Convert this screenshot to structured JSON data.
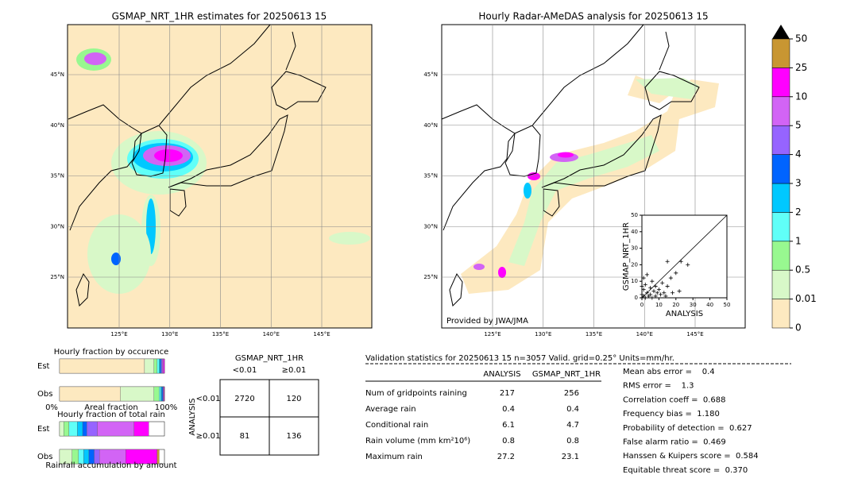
{
  "maps": [
    {
      "title": "GSMAP_NRT_1HR estimates for 20250613 15"
    },
    {
      "title": "Hourly Radar-AMeDAS analysis for 20250613 15",
      "credit": "Provided by JWA/JMA"
    }
  ],
  "lat_labels": [
    "45°N",
    "40°N",
    "35°N",
    "30°N",
    "25°N"
  ],
  "lon_labels": [
    "125°E",
    "130°E",
    "135°E",
    "140°E",
    "145°E"
  ],
  "colorbar": {
    "ticks": [
      0,
      0.01,
      0.5,
      1,
      2,
      3,
      4,
      5,
      10,
      25,
      50
    ],
    "colors": [
      "#fde9c0",
      "#d8f8c8",
      "#98f890",
      "#60fff8",
      "#00c8ff",
      "#0064ff",
      "#9664ff",
      "#d264f5",
      "#ff00ff",
      "#c89632"
    ],
    "extend_color": "#000000"
  },
  "chart_data": [
    {
      "type": "scatter",
      "xlabel": "ANALYSIS",
      "ylabel": "GSMAP_NRT_1HR",
      "xlim": [
        0,
        50
      ],
      "ylim": [
        0,
        50
      ],
      "xticks": [
        0,
        10,
        20,
        30,
        40,
        50
      ],
      "yticks": [
        0,
        10,
        20,
        30,
        40,
        50
      ],
      "x": [
        0,
        1,
        1,
        2,
        2,
        3,
        4,
        5,
        5,
        6,
        7,
        8,
        8,
        9,
        10,
        11,
        12,
        13,
        14,
        15,
        17,
        18,
        20,
        22,
        23,
        27,
        3,
        1,
        0,
        6,
        15
      ],
      "y": [
        2,
        1,
        5,
        0,
        8,
        3,
        1,
        6,
        2,
        10,
        4,
        1,
        7,
        3,
        5,
        2,
        9,
        3,
        1,
        7,
        12,
        3,
        15,
        4,
        22,
        20,
        14,
        12,
        7,
        0,
        22
      ]
    },
    {
      "type": "stacked-bar",
      "title": "Hourly fraction by occurence",
      "categories": [
        "Est",
        "Obs"
      ],
      "xlim": [
        0,
        100
      ],
      "xticks": [
        {
          "value": 0,
          "label": "0%"
        },
        {
          "value": 100,
          "label": "100%"
        }
      ],
      "xlabel": "Areal fraction",
      "rows": [
        [
          81,
          9,
          3,
          2,
          1,
          1,
          1,
          1,
          1,
          0
        ],
        [
          58,
          32,
          5,
          1.5,
          1,
          1,
          0.5,
          0.5,
          0.5,
          0
        ]
      ],
      "colors": [
        "#fde9c0",
        "#d8f8c8",
        "#98f890",
        "#60fff8",
        "#00c8ff",
        "#0064ff",
        "#9664ff",
        "#d264f5",
        "#ff00ff",
        "#c89632"
      ]
    },
    {
      "type": "stacked-bar",
      "title": "Hourly fraction of total rain",
      "categories": [
        "Est",
        "Obs"
      ],
      "xlim": [
        0,
        100
      ],
      "xlabel": "Rainfall accumulation by amount",
      "rows": [
        [
          0,
          4,
          5,
          8,
          5,
          4,
          10,
          35,
          14,
          0
        ],
        [
          0,
          12,
          6,
          5,
          5,
          5,
          5,
          25,
          30,
          2
        ]
      ],
      "colors": [
        "#fde9c0",
        "#d8f8c8",
        "#98f890",
        "#60fff8",
        "#00c8ff",
        "#0064ff",
        "#9664ff",
        "#d264f5",
        "#ff00ff",
        "#c89632"
      ]
    }
  ],
  "contingency": {
    "title": "GSMAP_NRT_1HR",
    "col_labels": [
      "<0.01",
      "≥0.01"
    ],
    "row_title": "ANALYSIS",
    "row_labels": [
      "<0.01",
      "≥0.01"
    ],
    "rows": [
      [
        "2720",
        "120"
      ],
      [
        "81",
        "136"
      ]
    ]
  },
  "validation": {
    "header": "Validation statistics for 20250613 15  n=3057 Valid. grid=0.25° Units=mm/hr.",
    "columns": [
      "ANALYSIS",
      "GSMAP_NRT_1HR"
    ],
    "rows": [
      [
        "Num of gridpoints raining",
        "217",
        "256"
      ],
      [
        "Average rain",
        "0.4",
        "0.4"
      ],
      [
        "Conditional rain",
        "6.1",
        "4.7"
      ],
      [
        "Rain volume (mm km²10⁶)",
        "0.8",
        "0.8"
      ],
      [
        "Maximum rain",
        "27.2",
        "23.1"
      ]
    ],
    "scores": [
      "Mean abs error =    0.4",
      "RMS error =    1.3",
      "Correlation coeff =  0.688",
      "Frequency bias =  1.180",
      "Probability of detection =  0.627",
      "False alarm ratio =  0.469",
      "Hanssen & Kuipers score =  0.584",
      "Equitable threat score =  0.370"
    ]
  }
}
